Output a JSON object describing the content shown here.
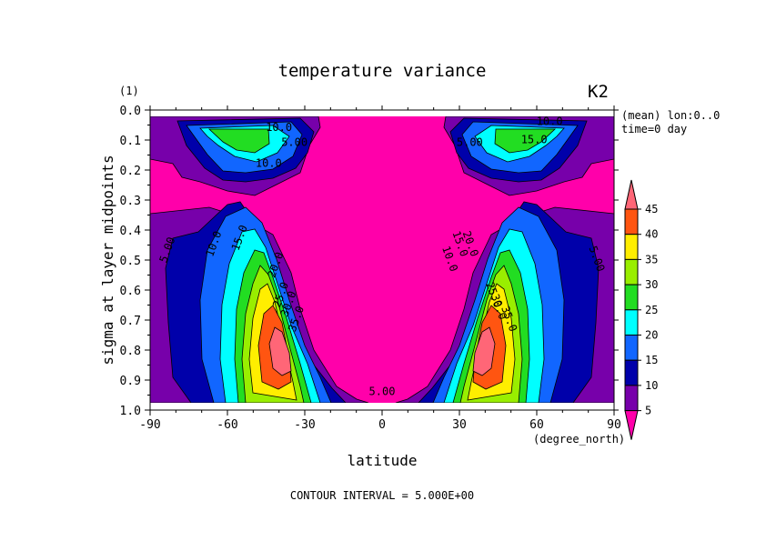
{
  "chart_data": {
    "type": "contour",
    "title": "temperature variance",
    "subtitle_left": "(1)",
    "subtitle_right": "K2",
    "info_lines": [
      "(mean) lon:0..0",
      "time=0 day"
    ],
    "xlabel": "latitude",
    "x_units": "(degree_north)",
    "ylabel": "sigma at layer midpoints",
    "x_ticks": [
      "-90",
      "-60",
      "-30",
      "0",
      "30",
      "60",
      "90"
    ],
    "y_ticks": [
      "0.0",
      "0.1",
      "0.2",
      "0.3",
      "0.4",
      "0.5",
      "0.6",
      "0.7",
      "0.8",
      "0.9",
      "1.0"
    ],
    "xlim": [
      -90,
      90
    ],
    "ylim": [
      1.0,
      0.0
    ],
    "footer": "CONTOUR INTERVAL = 5.000E+00",
    "colorbar": {
      "labels": [
        "5",
        "10",
        "15",
        "20",
        "25",
        "30",
        "35",
        "40",
        "45"
      ],
      "colors": [
        "#ff00aa",
        "#7700aa",
        "#0000aa",
        "#1166ff",
        "#00ffff",
        "#22dd22",
        "#99ee00",
        "#ffee00",
        "#ff5511",
        "#ff6677"
      ]
    },
    "contour_labels": [
      {
        "text": "5.00",
        "lat": -82,
        "sigma": 0.47
      },
      {
        "text": "5.00",
        "lat": 82,
        "sigma": 0.5
      },
      {
        "text": "5.00",
        "lat": 0,
        "sigma": 0.95
      },
      {
        "text": "5.00",
        "lat": -34,
        "sigma": 0.12
      },
      {
        "text": "5.00",
        "lat": 34,
        "sigma": 0.12
      },
      {
        "text": "10.0",
        "lat": -64,
        "sigma": 0.45
      },
      {
        "text": "10.0",
        "lat": 25,
        "sigma": 0.5
      },
      {
        "text": "10.0",
        "lat": -44,
        "sigma": 0.19
      },
      {
        "text": "10.0",
        "lat": -40,
        "sigma": 0.07
      },
      {
        "text": "10.0",
        "lat": 65,
        "sigma": 0.05
      },
      {
        "text": "15.0",
        "lat": -54,
        "sigma": 0.43
      },
      {
        "text": "15.0",
        "lat": 29,
        "sigma": 0.45
      },
      {
        "text": "15.0",
        "lat": 59,
        "sigma": 0.11
      },
      {
        "text": "20.0",
        "lat": -40,
        "sigma": 0.52
      },
      {
        "text": "20.0",
        "lat": 33,
        "sigma": 0.45
      },
      {
        "text": "25.0",
        "lat": -38,
        "sigma": 0.62
      },
      {
        "text": "25.0",
        "lat": 42,
        "sigma": 0.62
      },
      {
        "text": "30.0",
        "lat": -35,
        "sigma": 0.65
      },
      {
        "text": "30.0",
        "lat": 44,
        "sigma": 0.66
      },
      {
        "text": "35.0",
        "lat": -32,
        "sigma": 0.7
      },
      {
        "text": "35.0",
        "lat": 48,
        "sigma": 0.7
      }
    ]
  }
}
